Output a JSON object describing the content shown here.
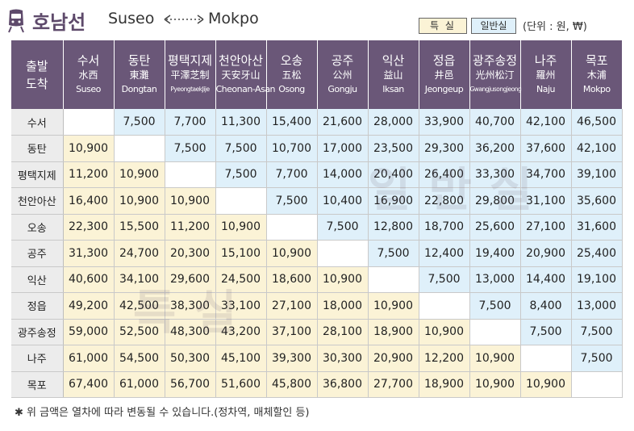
{
  "header": {
    "title_ko": "호남선",
    "title_from": "Suseo",
    "title_to": "Mokpo"
  },
  "legend": {
    "special_label": "특 실",
    "general_label": "일반실",
    "unit_note": "(단위 : 원, ₩)"
  },
  "table": {
    "corner_line1": "출발",
    "corner_line2": "도착",
    "stations": [
      {
        "ko": "수서",
        "hanja": "水西",
        "en": "Suseo"
      },
      {
        "ko": "동탄",
        "hanja": "東灘",
        "en": "Dongtan"
      },
      {
        "ko": "평택지제",
        "hanja": "平澤芝制",
        "en": "PyeongtaekJije"
      },
      {
        "ko": "천안아산",
        "hanja": "天安牙山",
        "en": "Cheonan-Asan"
      },
      {
        "ko": "오송",
        "hanja": "五松",
        "en": "Osong"
      },
      {
        "ko": "공주",
        "hanja": "公州",
        "en": "Gongju"
      },
      {
        "ko": "익산",
        "hanja": "益山",
        "en": "Iksan"
      },
      {
        "ko": "정읍",
        "hanja": "井邑",
        "en": "Jeongeup"
      },
      {
        "ko": "광주송정",
        "hanja": "光州松汀",
        "en": "Gwangjusongjeong"
      },
      {
        "ko": "나주",
        "hanja": "羅州",
        "en": "Naju"
      },
      {
        "ko": "목포",
        "hanja": "木浦",
        "en": "Mokpo"
      }
    ],
    "rows": [
      [
        "",
        "7,500",
        "7,700",
        "11,300",
        "15,400",
        "21,600",
        "28,000",
        "33,900",
        "40,700",
        "42,100",
        "46,500"
      ],
      [
        "10,900",
        "",
        "7,500",
        "7,500",
        "10,700",
        "17,000",
        "23,500",
        "29,300",
        "36,200",
        "37,600",
        "42,100"
      ],
      [
        "11,200",
        "10,900",
        "",
        "7,500",
        "7,700",
        "14,000",
        "20,400",
        "26,400",
        "33,300",
        "34,700",
        "39,100"
      ],
      [
        "16,400",
        "10,900",
        "10,900",
        "",
        "7,500",
        "10,400",
        "16,900",
        "22,800",
        "29,800",
        "31,100",
        "35,600"
      ],
      [
        "22,300",
        "15,500",
        "11,200",
        "10,900",
        "",
        "7,500",
        "12,800",
        "18,700",
        "25,600",
        "27,100",
        "31,600"
      ],
      [
        "31,300",
        "24,700",
        "20,300",
        "15,100",
        "10,900",
        "",
        "7,500",
        "12,400",
        "19,400",
        "20,900",
        "25,400"
      ],
      [
        "40,600",
        "34,100",
        "29,600",
        "24,500",
        "18,600",
        "10,900",
        "",
        "7,500",
        "13,000",
        "14,400",
        "19,100"
      ],
      [
        "49,200",
        "42,500",
        "38,300",
        "33,100",
        "27,100",
        "18,000",
        "10,900",
        "",
        "7,500",
        "8,400",
        "13,000"
      ],
      [
        "59,000",
        "52,500",
        "48,300",
        "43,200",
        "37,100",
        "28,100",
        "18,900",
        "10,900",
        "",
        "7,500",
        "7,500"
      ],
      [
        "61,000",
        "54,500",
        "50,300",
        "45,100",
        "39,300",
        "30,300",
        "20,900",
        "12,200",
        "10,900",
        "",
        "7,500"
      ],
      [
        "67,400",
        "61,000",
        "56,700",
        "51,600",
        "45,800",
        "36,800",
        "27,700",
        "18,900",
        "10,900",
        "10,900",
        ""
      ]
    ]
  },
  "watermarks": {
    "general": "일반실",
    "special": "특실"
  },
  "footnote": "✱ 위 금액은 열차에 따라 변동될 수 있습니다.(정차역, 매체할인 등)",
  "colors": {
    "header_purple": "#6a5778",
    "special_cell": "#fbf3d6",
    "general_cell": "#dff0fa"
  }
}
